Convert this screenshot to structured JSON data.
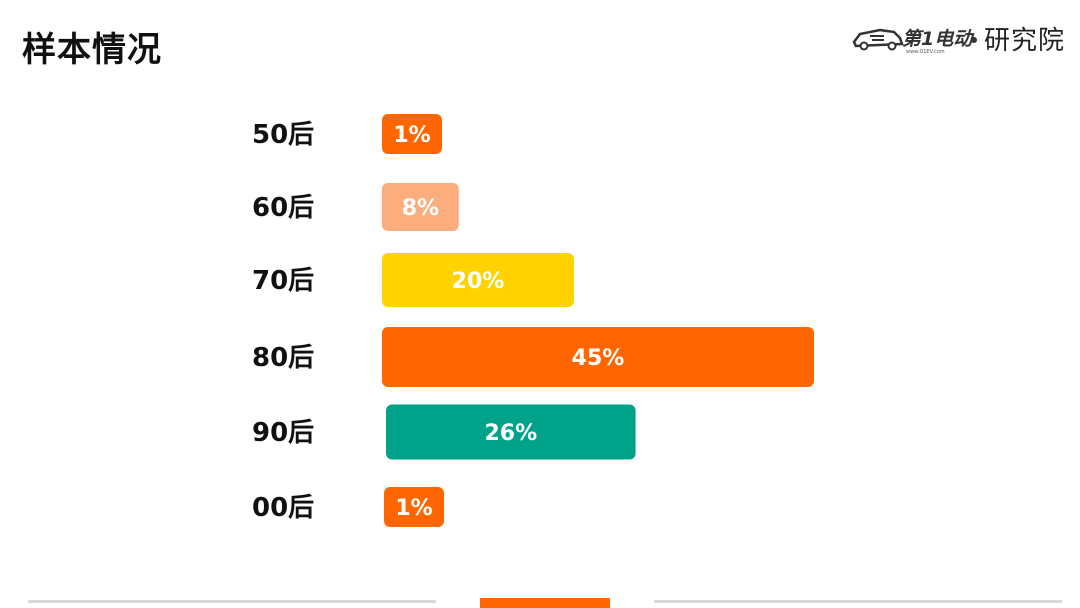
{
  "header": {
    "title": "样本情况",
    "logo_text": "研究院",
    "logo_brand": "第1电动",
    "logo_url_small": "www.D1EV.com"
  },
  "chart_data": {
    "type": "bar",
    "orientation": "horizontal",
    "categories": [
      "50后",
      "60后",
      "70后",
      "80后",
      "90后",
      "00后"
    ],
    "values": [
      1,
      8,
      20,
      45,
      26,
      1
    ],
    "data_labels": [
      "1%",
      "8%",
      "20%",
      "45%",
      "26%",
      "1%"
    ],
    "colors": [
      "#ff6600",
      "#fbad7e",
      "#ffd200",
      "#ff6600",
      "#00a389",
      "#ff6600"
    ],
    "title": "",
    "xlabel": "",
    "ylabel": "",
    "grid": false,
    "legend": "none"
  },
  "colors": {
    "accent": "#ff6600"
  }
}
